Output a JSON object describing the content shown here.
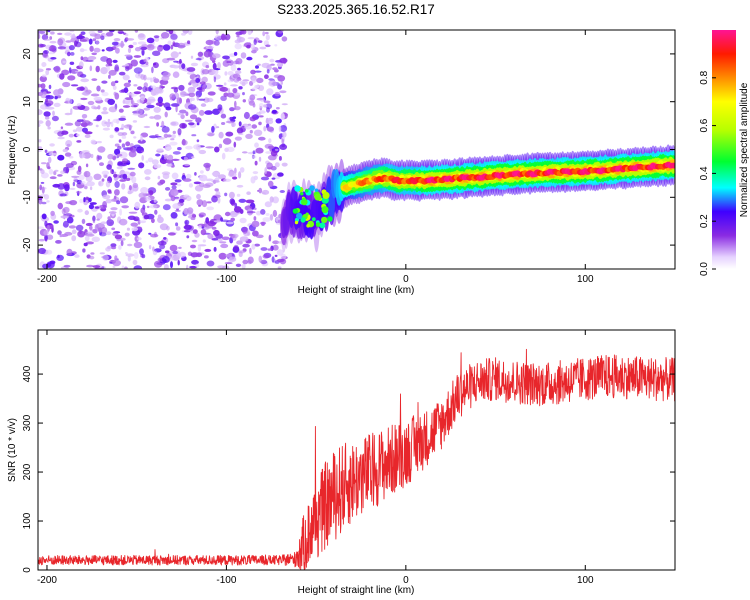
{
  "title": "S233.2025.365.16.52.R17",
  "chart_data": [
    {
      "type": "heatmap",
      "xlabel": "Height of straight line (km)",
      "ylabel": "Frequency (Hz)",
      "xlim": [
        -205,
        150
      ],
      "ylim": [
        -25,
        25
      ],
      "xticks": [
        -200,
        -100,
        0,
        100
      ],
      "xtick_labels": [
        "-200",
        "-100",
        "0",
        "100"
      ],
      "yticks": [
        -20,
        -10,
        0,
        10,
        20
      ],
      "ytick_labels": [
        "-20",
        "-10",
        "0",
        "10",
        "20"
      ],
      "noise_region": {
        "x": [
          -205,
          -67
        ],
        "y": [
          -25,
          25
        ],
        "amplitude": [
          0.05,
          0.22
        ]
      },
      "ridge": {
        "x": [
          -68,
          -62,
          -55,
          -50,
          -45,
          -40,
          -35,
          -30,
          -25,
          -20,
          -15,
          -10,
          -5,
          0,
          5,
          10,
          20,
          30,
          40,
          50,
          60,
          70,
          80,
          90,
          100,
          110,
          120,
          130,
          140,
          150
        ],
        "freq": [
          -14,
          -12.5,
          -13.5,
          -14,
          -12,
          -9,
          -8,
          -7.5,
          -7,
          -6.5,
          -6,
          -6,
          -6.5,
          -6.5,
          -6.5,
          -6.5,
          -6.3,
          -6,
          -5.8,
          -5.5,
          -5.2,
          -5,
          -4.8,
          -4.7,
          -4.5,
          -4.3,
          -4,
          -3.8,
          -3.5,
          -3.3
        ],
        "peak_amplitude": [
          0.35,
          0.45,
          0.5,
          0.45,
          0.5,
          0.6,
          0.7,
          0.75,
          0.8,
          0.85,
          0.85,
          0.9,
          0.9,
          0.9,
          0.9,
          0.95,
          0.95,
          0.95,
          0.95,
          0.95,
          0.95,
          0.95,
          0.95,
          0.95,
          0.95,
          0.95,
          0.95,
          0.95,
          0.95,
          0.95
        ]
      },
      "colorbar": {
        "label": "Normalized spectral amplitude",
        "range": [
          0,
          1
        ],
        "ticks": [
          0.0,
          0.2,
          0.4,
          0.6,
          0.8
        ],
        "tick_labels": [
          "0.0",
          "0.2",
          "0.4",
          "0.6",
          "0.8"
        ]
      }
    },
    {
      "type": "line",
      "xlabel": "Height of straight line (km)",
      "ylabel": "SNR (10 * v/v)",
      "xlim": [
        -205,
        150
      ],
      "ylim": [
        0,
        490
      ],
      "xticks": [
        -200,
        -100,
        0,
        100
      ],
      "xtick_labels": [
        "-200",
        "-100",
        "0",
        "100"
      ],
      "yticks": [
        0,
        100,
        200,
        300,
        400
      ],
      "ytick_labels": [
        "0",
        "100",
        "200",
        "300",
        "400"
      ],
      "series": [
        {
          "name": "SNR",
          "color": "#e8262b",
          "x": [
            -205,
            -150,
            -100,
            -70,
            -62,
            -58,
            -52,
            -45,
            -38,
            -30,
            -20,
            -10,
            0,
            10,
            20,
            25,
            30,
            40,
            50,
            60,
            70,
            80,
            90,
            100,
            110,
            120,
            130,
            140,
            150
          ],
          "mean": [
            20,
            20,
            20,
            20,
            22,
            45,
            90,
            130,
            160,
            180,
            200,
            220,
            240,
            265,
            300,
            330,
            360,
            385,
            390,
            385,
            380,
            380,
            385,
            390,
            395,
            395,
            392,
            390,
            388
          ],
          "spread": [
            10,
            10,
            10,
            10,
            15,
            55,
            80,
            90,
            95,
            85,
            80,
            75,
            70,
            60,
            55,
            50,
            50,
            45,
            45,
            45,
            45,
            45,
            45,
            45,
            45,
            45,
            45,
            45,
            45
          ]
        }
      ]
    }
  ]
}
